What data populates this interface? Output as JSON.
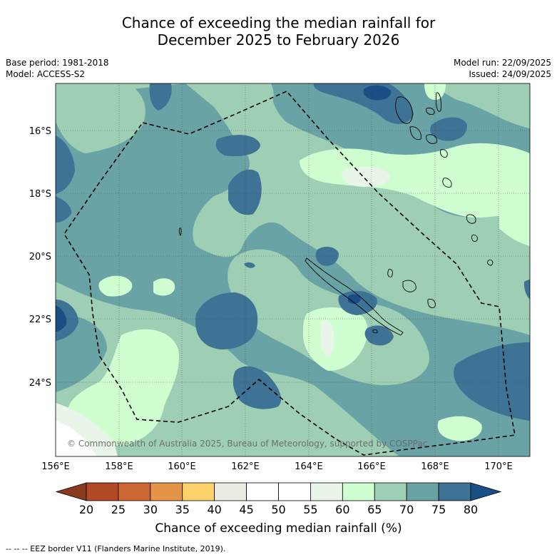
{
  "title_line1": "Chance of exceeding the median rainfall for",
  "title_line2": "December 2025 to February 2026",
  "base_period": "Base period: 1981-2018",
  "model": "Model: ACCESS-S2",
  "model_run": "Model run: 22/09/2025",
  "issued": "Issued: 24/09/2025",
  "lat_labels": [
    "16°S",
    "18°S",
    "20°S",
    "22°S",
    "24°S"
  ],
  "lon_labels": [
    "156°E",
    "158°E",
    "160°E",
    "162°E",
    "164°E",
    "166°E",
    "168°E",
    "170°E"
  ],
  "copyright": "© Commonwealth of Australia 2025, Bureau of Meteorology, supported by COSPPac",
  "colorbar": {
    "ticks": [
      "20",
      "25",
      "30",
      "35",
      "40",
      "45",
      "50",
      "55",
      "60",
      "65",
      "70",
      "75",
      "80"
    ],
    "colors": [
      "#8a3a1e",
      "#b14a24",
      "#cc6633",
      "#e39447",
      "#fdd26b",
      "#ebebe4",
      "#ffffff",
      "#ffffff",
      "#eaf5ea",
      "#cfffd0",
      "#9ecfb5",
      "#6aa3a5",
      "#3f7396",
      "#1a4f86"
    ],
    "label": "Chance of exceeding median rainfall (%)"
  },
  "legend_footnote": "-- -- -- EEZ border V11 (Flanders Marine Institute, 2019).",
  "colors": {
    "c50": "#ffffff",
    "c55": "#eaf5ea",
    "c60": "#cfffd0",
    "c65": "#9ecfb5",
    "c70": "#6aa3a5",
    "c75": "#3f7396",
    "c80": "#1a4f86"
  }
}
